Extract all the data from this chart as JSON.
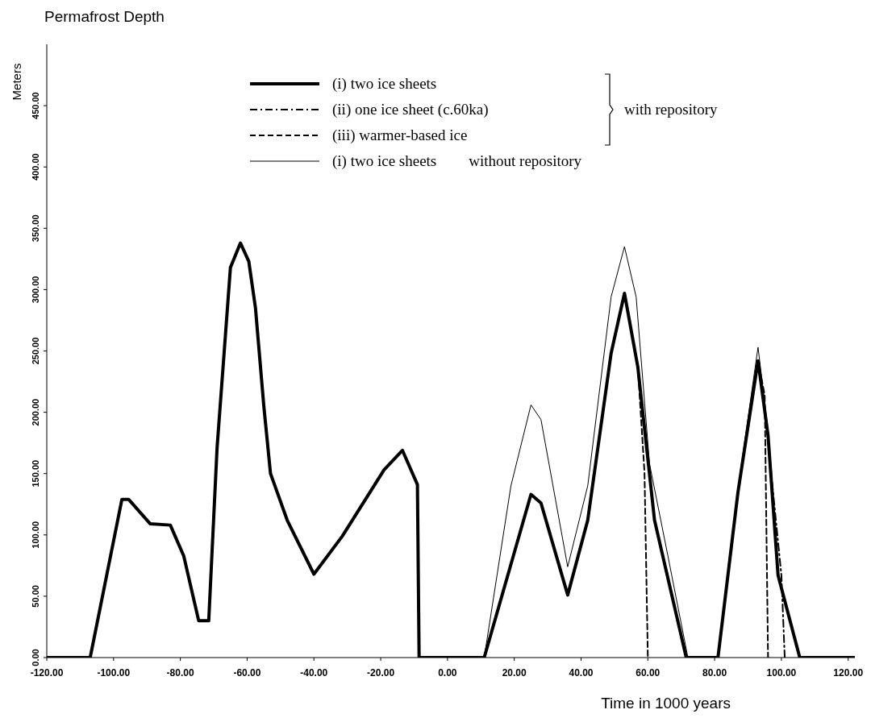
{
  "chart_data": {
    "type": "line",
    "title": "Permafrost Depth",
    "xlabel": "Time in 1000 years",
    "ylabel": "Meters",
    "xlim": [
      -120,
      122
    ],
    "ylim": [
      0,
      500
    ],
    "xticks": [
      {
        "value": -120,
        "label": "-120.00"
      },
      {
        "value": -100,
        "label": "-100.00"
      },
      {
        "value": -80,
        "label": "-80.00"
      },
      {
        "value": -60,
        "label": "-60.00"
      },
      {
        "value": -40,
        "label": "-40.00"
      },
      {
        "value": -20,
        "label": "-20.00"
      },
      {
        "value": 0,
        "label": "0.00"
      },
      {
        "value": 20,
        "label": "20.00"
      },
      {
        "value": 40,
        "label": "40.00"
      },
      {
        "value": 60,
        "label": "60.00"
      },
      {
        "value": 80,
        "label": "80.00"
      },
      {
        "value": 100,
        "label": "100.00"
      },
      {
        "value": 120,
        "label": "120.00"
      }
    ],
    "yticks": [
      {
        "value": 0,
        "label": "0.00"
      },
      {
        "value": 50,
        "label": "50.00"
      },
      {
        "value": 100,
        "label": "100.00"
      },
      {
        "value": 150,
        "label": "150.00"
      },
      {
        "value": 200,
        "label": "200.00"
      },
      {
        "value": 250,
        "label": "250.00"
      },
      {
        "value": 300,
        "label": "300.00"
      },
      {
        "value": 350,
        "label": "350.00"
      },
      {
        "value": 400,
        "label": "400.00"
      },
      {
        "value": 450,
        "label": "450.00"
      }
    ],
    "legend": "top",
    "marker": "none",
    "annotations": [
      "with repository",
      "without repository"
    ],
    "series": [
      {
        "name": "(i) two ice sheets",
        "color": "#000000",
        "line_style": "solid",
        "x": [
          -120,
          -107,
          -97.5,
          -95.5,
          -89,
          -83,
          -79,
          -74.5,
          -71.5,
          -69,
          -65,
          -62,
          -59.5,
          -57.5,
          -55,
          -53,
          -48,
          -40,
          -31.5,
          -19,
          -13.5,
          -9,
          -8.5,
          11,
          25,
          28,
          36,
          42,
          49,
          53,
          57,
          62,
          71.5,
          81,
          87,
          93,
          96,
          99,
          105.5,
          122
        ],
        "values": [
          0,
          0,
          129,
          129,
          109,
          108,
          83,
          30,
          30,
          171,
          318,
          338,
          323,
          285,
          205,
          150,
          112,
          68,
          99,
          153,
          169,
          141,
          0,
          0,
          133,
          126,
          51,
          112,
          248,
          297,
          237,
          112,
          0,
          0,
          135,
          242,
          181,
          67,
          0,
          0
        ]
      },
      {
        "name": "(ii) one ice sheet (c.60ka)",
        "color": "#000000",
        "line_style": "dotted",
        "x": [
          93,
          95.5,
          97.5,
          100,
          101
        ],
        "values": [
          242,
          192,
          135,
          67,
          0
        ]
      },
      {
        "name": "(iii) warmer-based ice",
        "color": "#000000",
        "line_style": "dashed",
        "x": [
          57,
          59,
          60,
          81,
          93,
          95,
          96
        ],
        "values": [
          237,
          151,
          0,
          null,
          242,
          214,
          0
        ]
      },
      {
        "name": "(i) two ice sheets",
        "color": "#000000",
        "line_style": "solid",
        "x": [
          11,
          19,
          25,
          28,
          36,
          42,
          49,
          53,
          56.5,
          60.5,
          66,
          72,
          81,
          87,
          93,
          96,
          99,
          105.5
        ],
        "values": [
          0,
          140,
          206,
          194,
          74,
          140,
          294,
          335,
          294,
          158,
          83,
          0,
          0,
          138,
          253,
          185,
          67,
          0
        ]
      }
    ]
  }
}
